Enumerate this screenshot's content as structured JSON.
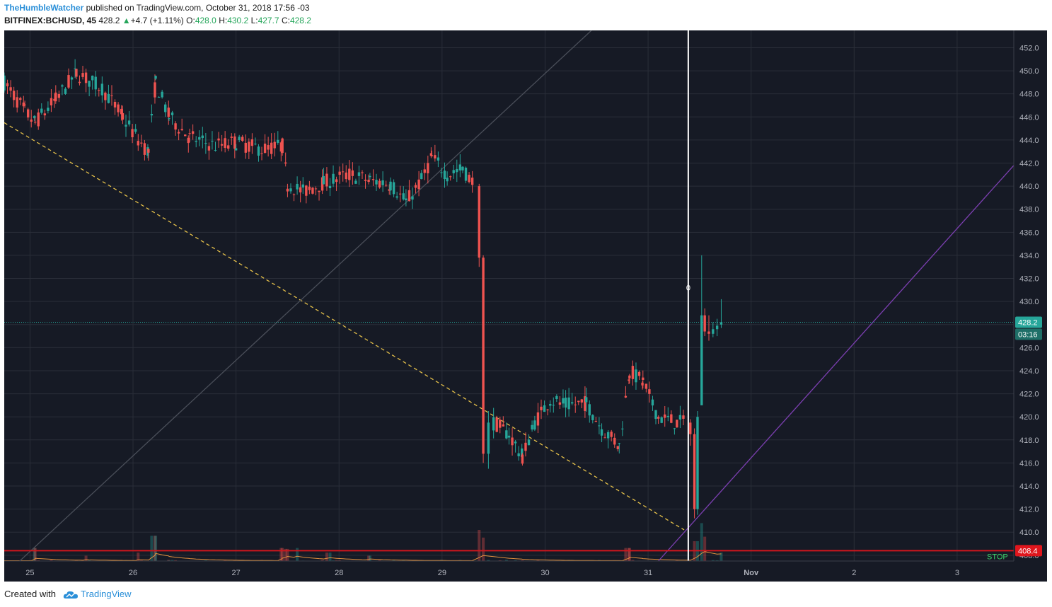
{
  "header": {
    "author": "TheHumbleWatcher",
    "published_text": "published on TradingView.com, October 31, 2018 17:56 -03",
    "symbol": "BITFINEX:BCHUSD, 45",
    "last": "428.2",
    "change": "+4.7 (+1.11%)",
    "o_label": "O:",
    "o_val": "428.0",
    "h_label": "H:",
    "h_val": "430.2",
    "l_label": "L:",
    "l_val": "427.7",
    "c_label": "C:",
    "c_val": "428.2"
  },
  "footer": {
    "created_with": "Created with",
    "brand": "TradingView"
  },
  "colors": {
    "background": "#161a25",
    "grid": "#2a2e39",
    "up": "#26a69a",
    "down": "#ef5350",
    "trend_yellow": "#e6c14a",
    "trend_purple": "#7b3fb0",
    "stop_line": "#d0161d",
    "vline": "#ffffff",
    "price_line": "#26a69a",
    "volume_ma": "#e3913f"
  },
  "chart_data": {
    "type": "candlestick",
    "symbol": "BITFINEX:BCHUSD",
    "interval": "45",
    "y_range": [
      407.5,
      453.5
    ],
    "y_ticks": [
      "452.0",
      "450.0",
      "448.0",
      "446.0",
      "444.0",
      "442.0",
      "440.0",
      "438.0",
      "436.0",
      "434.0",
      "432.0",
      "430.0",
      "428.0",
      "426.0",
      "424.0",
      "422.0",
      "420.0",
      "418.0",
      "416.0",
      "414.0",
      "412.0",
      "410.0",
      "408.0"
    ],
    "x_range_days": [
      24.75,
      34.55
    ],
    "x_ticks": [
      {
        "label": "25",
        "day": 25
      },
      {
        "label": "26",
        "day": 26
      },
      {
        "label": "27",
        "day": 27
      },
      {
        "label": "28",
        "day": 28
      },
      {
        "label": "29",
        "day": 29
      },
      {
        "label": "30",
        "day": 30
      },
      {
        "label": "31",
        "day": 31
      },
      {
        "label": "Nov",
        "day": 32
      },
      {
        "label": "2",
        "day": 33
      },
      {
        "label": "3",
        "day": 34
      }
    ],
    "current_price": {
      "value": 428.2,
      "label": "428.2",
      "countdown": "03:16"
    },
    "stop_level": {
      "value": 408.4,
      "label": "408.4",
      "text": "STOP"
    },
    "vertical_marker_day": 31.39,
    "marker_value_label": "0",
    "trendlines": [
      {
        "name": "dashed-descending",
        "style": "dashed",
        "color": "#e6c14a",
        "from": [
          24.75,
          445.5
        ],
        "to": [
          31.35,
          410.2
        ]
      },
      {
        "name": "gray-ascending",
        "style": "solid",
        "color": "#4a4e59",
        "from": [
          24.9,
          407.5
        ],
        "to": [
          30.45,
          453.5
        ]
      },
      {
        "name": "purple-ascending",
        "style": "solid",
        "color": "#7b3fb0",
        "from": [
          31.1,
          407.5
        ],
        "to": [
          34.55,
          441.8
        ]
      }
    ],
    "anchors": [
      {
        "day": 24.75,
        "price": 449.0
      },
      {
        "day": 24.95,
        "price": 446.5
      },
      {
        "day": 25.05,
        "price": 445.5
      },
      {
        "day": 25.25,
        "price": 447.5
      },
      {
        "day": 25.45,
        "price": 449.8
      },
      {
        "day": 25.7,
        "price": 448.5
      },
      {
        "day": 25.9,
        "price": 446.0
      },
      {
        "day": 26.05,
        "price": 444.0
      },
      {
        "day": 26.15,
        "price": 443.0
      },
      {
        "day": 26.22,
        "price": 449.0
      },
      {
        "day": 26.35,
        "price": 446.0
      },
      {
        "day": 26.55,
        "price": 444.2
      },
      {
        "day": 26.8,
        "price": 443.5
      },
      {
        "day": 27.0,
        "price": 443.8
      },
      {
        "day": 27.25,
        "price": 443.2
      },
      {
        "day": 27.45,
        "price": 443.5
      },
      {
        "day": 27.5,
        "price": 440.2
      },
      {
        "day": 27.65,
        "price": 439.5
      },
      {
        "day": 27.85,
        "price": 440.3
      },
      {
        "day": 28.1,
        "price": 441.0
      },
      {
        "day": 28.3,
        "price": 440.5
      },
      {
        "day": 28.5,
        "price": 440.2
      },
      {
        "day": 28.65,
        "price": 438.6
      },
      {
        "day": 28.8,
        "price": 440.5
      },
      {
        "day": 28.9,
        "price": 442.5
      },
      {
        "day": 29.05,
        "price": 441.0
      },
      {
        "day": 29.2,
        "price": 441.5
      },
      {
        "day": 29.3,
        "price": 440.3
      }
    ],
    "segments": [
      {
        "day": 29.36,
        "o": 440.0,
        "h": 440.2,
        "l": 433.0,
        "c": 433.8
      },
      {
        "day": 29.4,
        "o": 433.8,
        "h": 434.0,
        "l": 416.0,
        "c": 416.8
      },
      {
        "day": 29.45,
        "o": 416.8,
        "h": 420.5,
        "l": 415.5,
        "c": 419.5
      }
    ],
    "anchors2": [
      {
        "day": 29.5,
        "price": 419.5
      },
      {
        "day": 29.65,
        "price": 418.5
      },
      {
        "day": 29.78,
        "price": 416.5
      },
      {
        "day": 29.9,
        "price": 419.5
      },
      {
        "day": 30.05,
        "price": 421.5
      },
      {
        "day": 30.2,
        "price": 421.0
      },
      {
        "day": 30.4,
        "price": 421.2
      },
      {
        "day": 30.55,
        "price": 419.0
      },
      {
        "day": 30.72,
        "price": 417.5
      },
      {
        "day": 30.82,
        "price": 424.0
      },
      {
        "day": 30.95,
        "price": 423.0
      },
      {
        "day": 31.1,
        "price": 420.0
      },
      {
        "day": 31.28,
        "price": 419.5
      },
      {
        "day": 31.37,
        "price": 419.5
      }
    ],
    "segments2": [
      {
        "day": 31.41,
        "o": 419.5,
        "h": 419.8,
        "l": 417.5,
        "c": 418.5
      },
      {
        "day": 31.45,
        "o": 418.5,
        "h": 419.0,
        "l": 411.2,
        "c": 412.0
      },
      {
        "day": 31.48,
        "o": 412.0,
        "h": 420.5,
        "l": 411.5,
        "c": 420.0
      },
      {
        "day": 31.52,
        "o": 421.0,
        "h": 434.0,
        "l": 421.0,
        "c": 428.8
      },
      {
        "day": 31.55,
        "o": 428.8,
        "h": 429.4,
        "l": 427.0,
        "c": 427.4
      },
      {
        "day": 31.59,
        "o": 427.4,
        "h": 428.8,
        "l": 426.6,
        "c": 427.2
      },
      {
        "day": 31.63,
        "o": 427.2,
        "h": 428.2,
        "l": 426.9,
        "c": 427.6
      },
      {
        "day": 31.67,
        "o": 427.6,
        "h": 428.5,
        "l": 427.0,
        "c": 427.9
      },
      {
        "day": 31.71,
        "o": 428.0,
        "h": 430.2,
        "l": 427.7,
        "c": 428.2
      }
    ],
    "volume_spikes": [
      {
        "day": 25.05,
        "rel": 0.35
      },
      {
        "day": 25.55,
        "rel": 0.18
      },
      {
        "day": 26.05,
        "rel": 0.25
      },
      {
        "day": 26.2,
        "rel": 0.62
      },
      {
        "day": 27.45,
        "rel": 0.35
      },
      {
        "day": 27.5,
        "rel": 0.33
      },
      {
        "day": 27.6,
        "rel": 0.35
      },
      {
        "day": 27.9,
        "rel": 0.25
      },
      {
        "day": 28.3,
        "rel": 0.18
      },
      {
        "day": 29.33,
        "rel": 0.9
      },
      {
        "day": 29.37,
        "rel": 0.75
      },
      {
        "day": 29.42,
        "rel": 0.58
      },
      {
        "day": 30.8,
        "rel": 0.35
      },
      {
        "day": 31.46,
        "rel": 0.5
      },
      {
        "day": 31.5,
        "rel": 0.9
      },
      {
        "day": 31.53,
        "rel": 0.6
      },
      {
        "day": 31.72,
        "rel": 0.25
      }
    ]
  }
}
